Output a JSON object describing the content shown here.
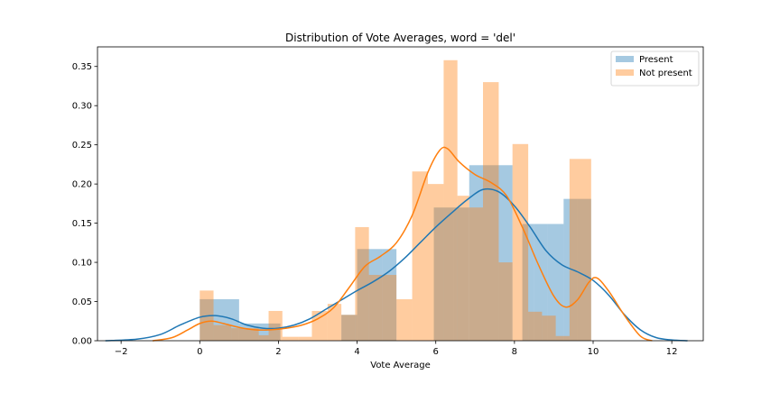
{
  "chart_data": {
    "type": "histogram",
    "title": "Distribution of Vote Averages, word = 'del'",
    "xlabel": "Vote Average",
    "ylabel": "",
    "xlim": [
      -2.6,
      12.8
    ],
    "ylim": [
      0,
      0.375
    ],
    "xticks": [
      -2,
      0,
      2,
      4,
      6,
      8,
      10,
      12
    ],
    "yticks": [
      0.0,
      0.05,
      0.1,
      0.15,
      0.2,
      0.25,
      0.3,
      0.35
    ],
    "legend_position": "top-right",
    "series": [
      {
        "name": "Present",
        "color": "#1f77b4",
        "bars": [
          {
            "x0": 0.0,
            "x1": 0.35,
            "y": 0.053
          },
          {
            "x0": 0.35,
            "x1": 1.0,
            "y": 0.053
          },
          {
            "x0": 1.0,
            "x1": 1.75,
            "y": 0.022
          },
          {
            "x0": 1.75,
            "x1": 2.05,
            "y": 0.022
          },
          {
            "x0": 3.6,
            "x1": 4.0,
            "y": 0.033
          },
          {
            "x0": 4.0,
            "x1": 4.65,
            "y": 0.117
          },
          {
            "x0": 4.65,
            "x1": 5.0,
            "y": 0.117
          },
          {
            "x0": 5.95,
            "x1": 6.45,
            "y": 0.17
          },
          {
            "x0": 6.45,
            "x1": 6.85,
            "y": 0.17
          },
          {
            "x0": 6.85,
            "x1": 7.2,
            "y": 0.224
          },
          {
            "x0": 7.2,
            "x1": 7.6,
            "y": 0.224
          },
          {
            "x0": 7.6,
            "x1": 7.95,
            "y": 0.224
          },
          {
            "x0": 8.2,
            "x1": 8.5,
            "y": 0.149
          },
          {
            "x0": 8.5,
            "x1": 8.85,
            "y": 0.149
          },
          {
            "x0": 8.85,
            "x1": 9.25,
            "y": 0.149
          },
          {
            "x0": 9.25,
            "x1": 9.6,
            "y": 0.181
          },
          {
            "x0": 9.6,
            "x1": 9.95,
            "y": 0.181
          }
        ],
        "kde": [
          [
            -2.4,
            0.0
          ],
          [
            -1.6,
            0.002
          ],
          [
            -1.0,
            0.008
          ],
          [
            -0.5,
            0.02
          ],
          [
            0.0,
            0.03
          ],
          [
            0.4,
            0.032
          ],
          [
            0.8,
            0.028
          ],
          [
            1.2,
            0.02
          ],
          [
            1.6,
            0.016
          ],
          [
            2.0,
            0.016
          ],
          [
            2.4,
            0.02
          ],
          [
            2.8,
            0.028
          ],
          [
            3.2,
            0.04
          ],
          [
            3.6,
            0.052
          ],
          [
            4.0,
            0.064
          ],
          [
            4.4,
            0.075
          ],
          [
            4.8,
            0.088
          ],
          [
            5.2,
            0.105
          ],
          [
            5.6,
            0.125
          ],
          [
            6.0,
            0.145
          ],
          [
            6.4,
            0.163
          ],
          [
            6.8,
            0.18
          ],
          [
            7.2,
            0.193
          ],
          [
            7.6,
            0.19
          ],
          [
            8.0,
            0.172
          ],
          [
            8.4,
            0.145
          ],
          [
            8.8,
            0.115
          ],
          [
            9.2,
            0.097
          ],
          [
            9.6,
            0.088
          ],
          [
            10.0,
            0.077
          ],
          [
            10.4,
            0.058
          ],
          [
            10.8,
            0.033
          ],
          [
            11.2,
            0.014
          ],
          [
            11.6,
            0.004
          ],
          [
            12.0,
            0.001
          ],
          [
            12.4,
            0.0
          ]
        ]
      },
      {
        "name": "Not present",
        "color": "#ff7f0e",
        "bars": [
          {
            "x0": 0.0,
            "x1": 0.35,
            "y": 0.064
          },
          {
            "x0": 0.35,
            "x1": 0.8,
            "y": 0.02
          },
          {
            "x0": 0.8,
            "x1": 1.5,
            "y": 0.016
          },
          {
            "x0": 1.5,
            "x1": 1.75,
            "y": 0.007
          },
          {
            "x0": 1.75,
            "x1": 2.1,
            "y": 0.038
          },
          {
            "x0": 2.1,
            "x1": 2.5,
            "y": 0.005
          },
          {
            "x0": 2.5,
            "x1": 2.85,
            "y": 0.005
          },
          {
            "x0": 2.85,
            "x1": 3.25,
            "y": 0.038
          },
          {
            "x0": 3.25,
            "x1": 3.6,
            "y": 0.047
          },
          {
            "x0": 3.6,
            "x1": 3.95,
            "y": 0.033
          },
          {
            "x0": 3.95,
            "x1": 4.3,
            "y": 0.145
          },
          {
            "x0": 4.3,
            "x1": 4.65,
            "y": 0.084
          },
          {
            "x0": 4.65,
            "x1": 5.0,
            "y": 0.084
          },
          {
            "x0": 5.0,
            "x1": 5.4,
            "y": 0.053
          },
          {
            "x0": 5.4,
            "x1": 5.8,
            "y": 0.216
          },
          {
            "x0": 5.8,
            "x1": 6.2,
            "y": 0.2
          },
          {
            "x0": 6.2,
            "x1": 6.55,
            "y": 0.358
          },
          {
            "x0": 6.55,
            "x1": 6.85,
            "y": 0.185
          },
          {
            "x0": 6.85,
            "x1": 7.2,
            "y": 0.17
          },
          {
            "x0": 7.2,
            "x1": 7.6,
            "y": 0.33
          },
          {
            "x0": 7.6,
            "x1": 7.95,
            "y": 0.1
          },
          {
            "x0": 7.95,
            "x1": 8.35,
            "y": 0.251
          },
          {
            "x0": 8.35,
            "x1": 8.7,
            "y": 0.037
          },
          {
            "x0": 8.7,
            "x1": 9.05,
            "y": 0.032
          },
          {
            "x0": 9.05,
            "x1": 9.4,
            "y": 0.006
          },
          {
            "x0": 9.4,
            "x1": 9.95,
            "y": 0.232
          }
        ],
        "kde": [
          [
            -1.2,
            0.0
          ],
          [
            -0.7,
            0.004
          ],
          [
            -0.3,
            0.014
          ],
          [
            0.0,
            0.022
          ],
          [
            0.3,
            0.025
          ],
          [
            0.6,
            0.022
          ],
          [
            1.0,
            0.017
          ],
          [
            1.4,
            0.014
          ],
          [
            1.8,
            0.014
          ],
          [
            2.2,
            0.016
          ],
          [
            2.6,
            0.02
          ],
          [
            3.0,
            0.028
          ],
          [
            3.4,
            0.042
          ],
          [
            3.8,
            0.068
          ],
          [
            4.2,
            0.095
          ],
          [
            4.6,
            0.108
          ],
          [
            5.0,
            0.125
          ],
          [
            5.4,
            0.16
          ],
          [
            5.8,
            0.215
          ],
          [
            6.1,
            0.243
          ],
          [
            6.3,
            0.245
          ],
          [
            6.6,
            0.228
          ],
          [
            7.0,
            0.212
          ],
          [
            7.4,
            0.202
          ],
          [
            7.8,
            0.185
          ],
          [
            8.2,
            0.145
          ],
          [
            8.6,
            0.098
          ],
          [
            9.0,
            0.057
          ],
          [
            9.3,
            0.043
          ],
          [
            9.6,
            0.052
          ],
          [
            9.9,
            0.075
          ],
          [
            10.1,
            0.08
          ],
          [
            10.4,
            0.063
          ],
          [
            10.8,
            0.032
          ],
          [
            11.2,
            0.006
          ],
          [
            11.5,
            0.0
          ]
        ]
      }
    ]
  }
}
